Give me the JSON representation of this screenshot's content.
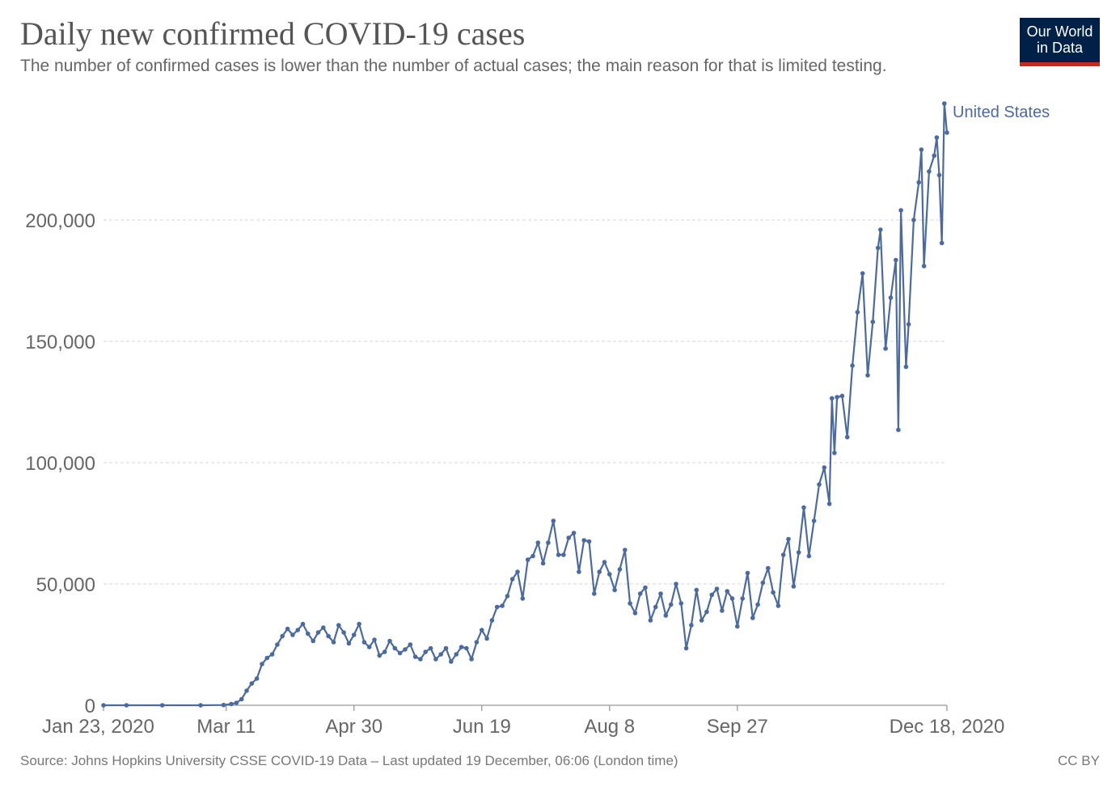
{
  "header": {
    "title": "Daily new confirmed COVID-19 cases",
    "subtitle": "The number of confirmed cases is lower than the number of actual cases; the main reason for that is limited testing."
  },
  "logo": {
    "line1": "Our World",
    "line2": "in Data",
    "bg": "#002147",
    "accent": "#ce261e"
  },
  "footer": {
    "source": "Source: Johns Hopkins University CSSE COVID-19 Data – Last updated 19 December, 06:06 (London time)",
    "license": "CC BY"
  },
  "chart_data": {
    "type": "line",
    "title": "Daily new confirmed COVID-19 cases",
    "xlabel": "",
    "ylabel": "",
    "x_start": "Jan 23, 2020",
    "x_end": "Dec 18, 2020",
    "xlim": [
      "2020-01-23",
      "2020-12-18"
    ],
    "ylim": [
      0,
      250000
    ],
    "y_ticks": [
      {
        "value": 0,
        "label": "0"
      },
      {
        "value": 50000,
        "label": "50,000"
      },
      {
        "value": 100000,
        "label": "100,000"
      },
      {
        "value": 150000,
        "label": "150,000"
      },
      {
        "value": 200000,
        "label": "200,000"
      }
    ],
    "x_ticks": [
      {
        "date": "2020-01-23",
        "label": "Jan 23, 2020"
      },
      {
        "date": "2020-03-11",
        "label": "Mar 11"
      },
      {
        "date": "2020-04-30",
        "label": "Apr 30"
      },
      {
        "date": "2020-06-19",
        "label": "Jun 19"
      },
      {
        "date": "2020-08-08",
        "label": "Aug 8"
      },
      {
        "date": "2020-09-27",
        "label": "Sep 27"
      },
      {
        "date": "2020-12-18",
        "label": "Dec 18, 2020"
      }
    ],
    "grid": true,
    "legend": "end-label",
    "color": "#4c6a9c",
    "series": [
      {
        "name": "United States",
        "points": [
          [
            "2020-01-23",
            0
          ],
          [
            "2020-02-01",
            0
          ],
          [
            "2020-02-15",
            0
          ],
          [
            "2020-03-01",
            0
          ],
          [
            "2020-03-10",
            100
          ],
          [
            "2020-03-13",
            500
          ],
          [
            "2020-03-15",
            1000
          ],
          [
            "2020-03-17",
            2500
          ],
          [
            "2020-03-19",
            6000
          ],
          [
            "2020-03-21",
            9000
          ],
          [
            "2020-03-23",
            11000
          ],
          [
            "2020-03-25",
            17000
          ],
          [
            "2020-03-27",
            19500
          ],
          [
            "2020-03-29",
            21000
          ],
          [
            "2020-03-31",
            25000
          ],
          [
            "2020-04-02",
            28500
          ],
          [
            "2020-04-04",
            31500
          ],
          [
            "2020-04-06",
            29000
          ],
          [
            "2020-04-08",
            31000
          ],
          [
            "2020-04-10",
            33500
          ],
          [
            "2020-04-12",
            29500
          ],
          [
            "2020-04-14",
            26500
          ],
          [
            "2020-04-16",
            30000
          ],
          [
            "2020-04-18",
            32000
          ],
          [
            "2020-04-20",
            28500
          ],
          [
            "2020-04-22",
            26000
          ],
          [
            "2020-04-24",
            33000
          ],
          [
            "2020-04-26",
            30000
          ],
          [
            "2020-04-28",
            25500
          ],
          [
            "2020-04-30",
            29000
          ],
          [
            "2020-05-02",
            33500
          ],
          [
            "2020-05-04",
            26000
          ],
          [
            "2020-05-06",
            24000
          ],
          [
            "2020-05-08",
            27000
          ],
          [
            "2020-05-10",
            20500
          ],
          [
            "2020-05-12",
            22000
          ],
          [
            "2020-05-14",
            26500
          ],
          [
            "2020-05-16",
            23500
          ],
          [
            "2020-05-18",
            21500
          ],
          [
            "2020-05-20",
            23000
          ],
          [
            "2020-05-22",
            25000
          ],
          [
            "2020-05-24",
            20000
          ],
          [
            "2020-05-26",
            19000
          ],
          [
            "2020-05-28",
            22000
          ],
          [
            "2020-05-30",
            23500
          ],
          [
            "2020-06-01",
            19000
          ],
          [
            "2020-06-03",
            21000
          ],
          [
            "2020-06-05",
            23500
          ],
          [
            "2020-06-07",
            18000
          ],
          [
            "2020-06-09",
            21000
          ],
          [
            "2020-06-11",
            24000
          ],
          [
            "2020-06-13",
            23500
          ],
          [
            "2020-06-15",
            19000
          ],
          [
            "2020-06-17",
            26000
          ],
          [
            "2020-06-19",
            31000
          ],
          [
            "2020-06-21",
            27500
          ],
          [
            "2020-06-23",
            35000
          ],
          [
            "2020-06-25",
            40500
          ],
          [
            "2020-06-27",
            41000
          ],
          [
            "2020-06-29",
            45000
          ],
          [
            "2020-07-01",
            52000
          ],
          [
            "2020-07-03",
            55000
          ],
          [
            "2020-07-05",
            44000
          ],
          [
            "2020-07-07",
            60000
          ],
          [
            "2020-07-09",
            61500
          ],
          [
            "2020-07-11",
            67000
          ],
          [
            "2020-07-13",
            58500
          ],
          [
            "2020-07-15",
            67000
          ],
          [
            "2020-07-17",
            76000
          ],
          [
            "2020-07-19",
            62000
          ],
          [
            "2020-07-21",
            62000
          ],
          [
            "2020-07-23",
            69000
          ],
          [
            "2020-07-25",
            71000
          ],
          [
            "2020-07-27",
            55000
          ],
          [
            "2020-07-29",
            68000
          ],
          [
            "2020-07-31",
            67500
          ],
          [
            "2020-08-02",
            46000
          ],
          [
            "2020-08-04",
            55000
          ],
          [
            "2020-08-06",
            59000
          ],
          [
            "2020-08-08",
            54000
          ],
          [
            "2020-08-10",
            47500
          ],
          [
            "2020-08-12",
            56000
          ],
          [
            "2020-08-14",
            64000
          ],
          [
            "2020-08-16",
            42000
          ],
          [
            "2020-08-18",
            38000
          ],
          [
            "2020-08-20",
            46000
          ],
          [
            "2020-08-22",
            48500
          ],
          [
            "2020-08-24",
            35000
          ],
          [
            "2020-08-26",
            40500
          ],
          [
            "2020-08-28",
            46000
          ],
          [
            "2020-08-30",
            37000
          ],
          [
            "2020-09-01",
            41500
          ],
          [
            "2020-09-03",
            50000
          ],
          [
            "2020-09-05",
            42000
          ],
          [
            "2020-09-07",
            23500
          ],
          [
            "2020-09-09",
            33000
          ],
          [
            "2020-09-11",
            47500
          ],
          [
            "2020-09-13",
            35000
          ],
          [
            "2020-09-15",
            38500
          ],
          [
            "2020-09-17",
            45500
          ],
          [
            "2020-09-19",
            48000
          ],
          [
            "2020-09-21",
            39000
          ],
          [
            "2020-09-23",
            47000
          ],
          [
            "2020-09-25",
            44000
          ],
          [
            "2020-09-27",
            32500
          ],
          [
            "2020-09-29",
            44000
          ],
          [
            "2020-10-01",
            54500
          ],
          [
            "2020-10-03",
            36000
          ],
          [
            "2020-10-05",
            41500
          ],
          [
            "2020-10-07",
            50500
          ],
          [
            "2020-10-09",
            56500
          ],
          [
            "2020-10-11",
            46500
          ],
          [
            "2020-10-13",
            41000
          ],
          [
            "2020-10-15",
            62000
          ],
          [
            "2020-10-17",
            68500
          ],
          [
            "2020-10-19",
            49000
          ],
          [
            "2020-10-21",
            63000
          ],
          [
            "2020-10-23",
            81500
          ],
          [
            "2020-10-25",
            61500
          ],
          [
            "2020-10-27",
            76000
          ],
          [
            "2020-10-29",
            91000
          ],
          [
            "2020-10-31",
            98000
          ],
          [
            "2020-11-02",
            83000
          ],
          [
            "2020-11-03",
            126500
          ],
          [
            "2020-11-04",
            104000
          ],
          [
            "2020-11-05",
            127000
          ],
          [
            "2020-11-07",
            127500
          ],
          [
            "2020-11-09",
            110500
          ],
          [
            "2020-11-11",
            140000
          ],
          [
            "2020-11-13",
            162000
          ],
          [
            "2020-11-15",
            178000
          ],
          [
            "2020-11-17",
            136000
          ],
          [
            "2020-11-19",
            158000
          ],
          [
            "2020-11-21",
            188500
          ],
          [
            "2020-11-22",
            196000
          ],
          [
            "2020-11-24",
            147000
          ],
          [
            "2020-11-26",
            168000
          ],
          [
            "2020-11-28",
            183500
          ],
          [
            "2020-11-29",
            113500
          ],
          [
            "2020-11-30",
            204000
          ],
          [
            "2020-12-02",
            139500
          ],
          [
            "2020-12-03",
            157000
          ],
          [
            "2020-12-05",
            200000
          ],
          [
            "2020-12-07",
            215500
          ],
          [
            "2020-12-08",
            229000
          ],
          [
            "2020-12-09",
            181000
          ],
          [
            "2020-12-11",
            220000
          ],
          [
            "2020-12-13",
            226500
          ],
          [
            "2020-12-14",
            234000
          ],
          [
            "2020-12-15",
            218500
          ],
          [
            "2020-12-16",
            190500
          ],
          [
            "2020-12-17",
            248000
          ],
          [
            "2020-12-18",
            236000
          ]
        ]
      }
    ]
  }
}
